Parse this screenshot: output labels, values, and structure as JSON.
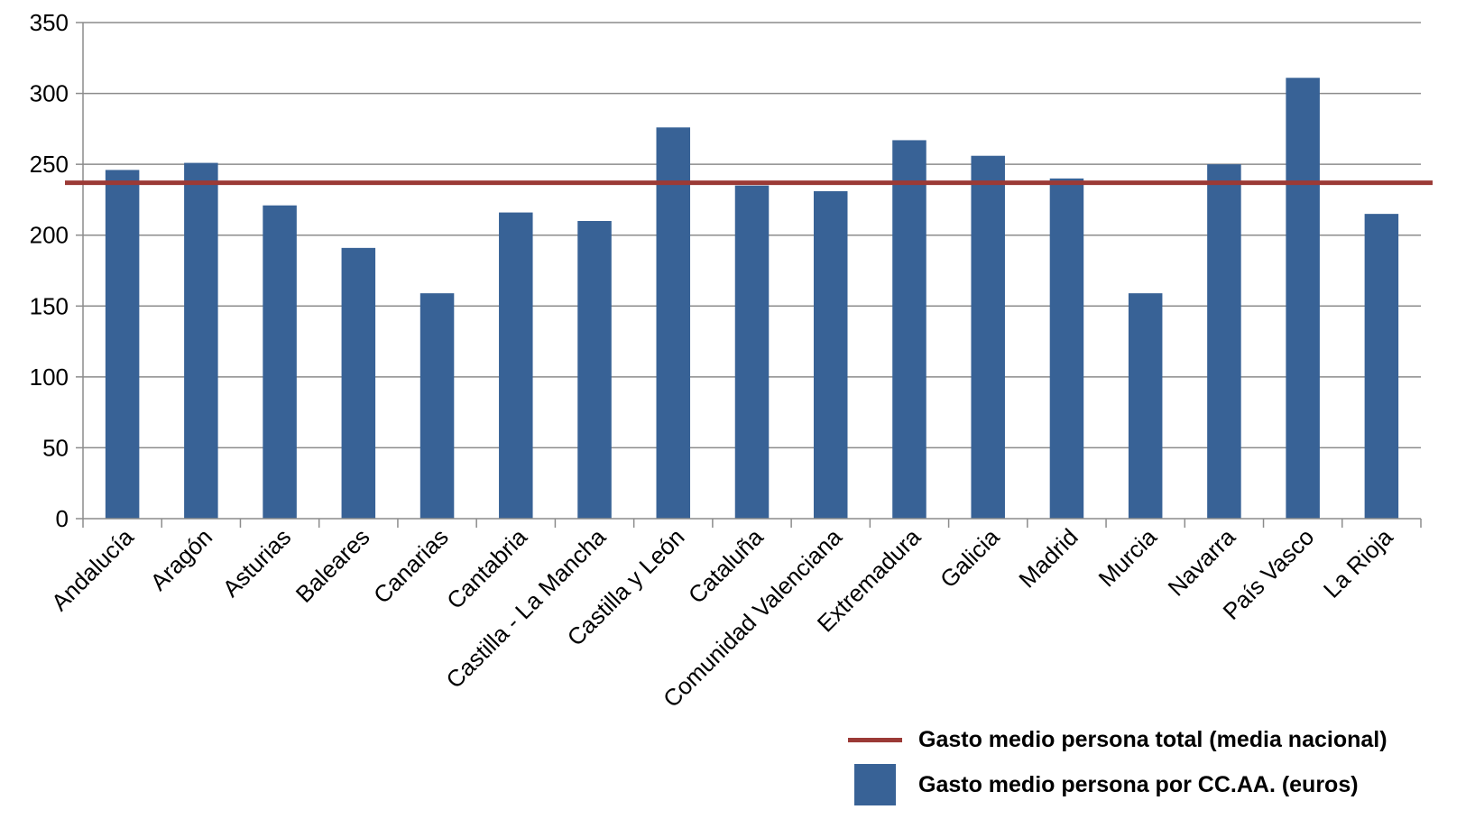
{
  "chart_data": {
    "type": "bar",
    "categories": [
      "Andalucía",
      "Aragón",
      "Asturias",
      "Baleares",
      "Canarias",
      "Cantabria",
      "Castilla - La Mancha",
      "Castilla y León",
      "Cataluña",
      "Comunidad Valenciana",
      "Extremadura",
      "Galicia",
      "Madrid",
      "Murcia",
      "Navarra",
      "País Vasco",
      "La Rioja"
    ],
    "series": [
      {
        "name": "Gasto medio persona por CC.AA. (euros)",
        "type": "bar",
        "color": "#386296",
        "values": [
          246,
          251,
          221,
          191,
          159,
          216,
          210,
          276,
          235,
          231,
          267,
          256,
          240,
          159,
          250,
          311,
          215
        ]
      },
      {
        "name": "Gasto medio persona total (media nacional)",
        "type": "line",
        "color": "#9b3a36",
        "value": 237
      }
    ],
    "ylim": [
      0,
      350
    ],
    "yticks": [
      "0",
      "50",
      "100",
      "150",
      "200",
      "250",
      "300",
      "350"
    ],
    "grid": true,
    "legend_position": "bottom-right"
  }
}
